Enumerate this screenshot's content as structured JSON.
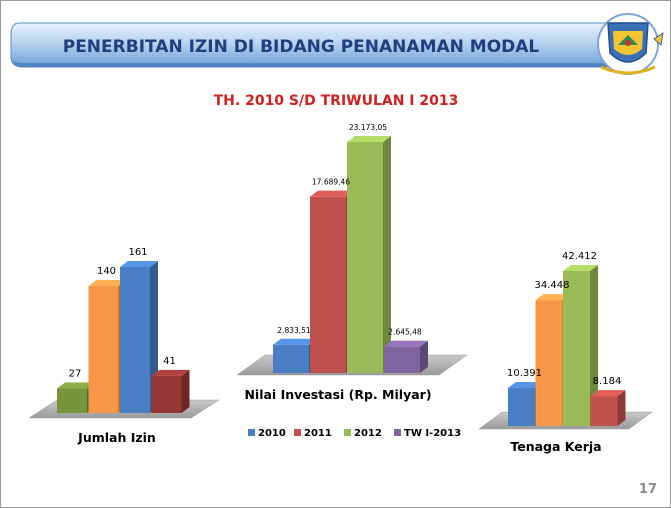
{
  "slide": {
    "header_title": "PENERBITAN IZIN DI BIDANG PENANAMAN MODAL",
    "subtitle": "TH. 2010  S/D  TRIWULAN I 2013",
    "page_number": "17",
    "logo_name": "provincial-crest"
  },
  "colors": {
    "2010": "#4a7ec4",
    "2011": "#f79646",
    "2012": "#9bbb59",
    "TW I-2013": "#c0504d",
    "header_bar": "#1f5fa3",
    "title_text": "#1f3f7f",
    "subtitle_text": "#d02020"
  },
  "chart_data": [
    {
      "type": "bar",
      "title": "Jumlah Izin",
      "categories": [
        "2010",
        "2011",
        "2012",
        "TW I-2013"
      ],
      "values": [
        27,
        140,
        161,
        41
      ],
      "value_labels": [
        "27",
        "140",
        "161",
        "41"
      ],
      "bar_colors": [
        "#77933c",
        "#f79646",
        "#4a7ec4",
        "#953735"
      ],
      "ylim": [
        0,
        161
      ]
    },
    {
      "type": "bar",
      "title": "Nilai Investasi (Rp. Milyar)",
      "categories": [
        "2010",
        "2011",
        "2012",
        "TW I-2013"
      ],
      "values": [
        2833.51,
        17689.46,
        23173.05,
        2645.48
      ],
      "value_labels": [
        "2.833,51",
        "17.689,46",
        "23.173,05",
        "2.645,48"
      ],
      "bar_colors": [
        "#4a7ec4",
        "#c0504d",
        "#9bbb59",
        "#8064a2"
      ],
      "ylim": [
        0,
        23173.05
      ]
    },
    {
      "type": "bar",
      "title": "Tenaga Kerja",
      "categories": [
        "2010",
        "2011",
        "2012",
        "TW I-2013"
      ],
      "values": [
        10391,
        34448,
        42412,
        8184
      ],
      "value_labels": [
        "10.391",
        "34.448",
        "42.412",
        "8.184"
      ],
      "bar_colors": [
        "#4a7ec4",
        "#f79646",
        "#9bbb59",
        "#c0504d"
      ],
      "ylim": [
        0,
        42412
      ]
    }
  ],
  "legend": {
    "placement": "bottom-center",
    "items": [
      {
        "label": "2010",
        "color": "#4a7ec4"
      },
      {
        "label": "2011",
        "color": "#c0504d"
      },
      {
        "label": "2012",
        "color": "#9bbb59"
      },
      {
        "label": "TW I-2013",
        "color": "#8064a2"
      }
    ]
  }
}
